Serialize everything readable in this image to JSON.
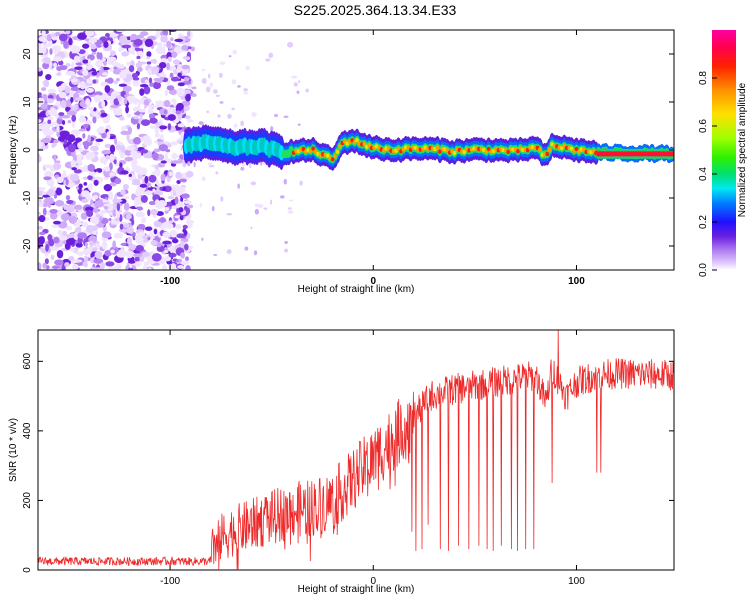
{
  "title": "S225.2025.364.13.34.E33",
  "colors": {
    "snr_line": "#ee2a2a",
    "spectrogram_noise": "#7a28d8",
    "colorbar": [
      "#ffffff",
      "#e8d8ff",
      "#b58cf0",
      "#6f2be0",
      "#2a18ff",
      "#00a0ff",
      "#00e0ff",
      "#00e060",
      "#80ff00",
      "#f0f000",
      "#ff8000",
      "#ff0000",
      "#ff0080"
    ]
  },
  "chart_data": [
    {
      "type": "heatmap",
      "xlabel": "Height of straight line (km)",
      "ylabel": "Frequency (Hz)",
      "xlim": [
        -165,
        148
      ],
      "ylim": [
        -25,
        25
      ],
      "x_ticks": [
        {
          "value": -100,
          "label": "-100"
        },
        {
          "value": 0,
          "label": "0"
        },
        {
          "value": 100,
          "label": "100"
        }
      ],
      "y_ticks": [
        {
          "value": 20,
          "label": "20"
        },
        {
          "value": 10,
          "label": "10"
        },
        {
          "value": 0,
          "label": "0"
        },
        {
          "value": -10,
          "label": "-10"
        },
        {
          "value": -20,
          "label": "-20"
        }
      ],
      "colorbar": {
        "label": "Normalized spectral amplitude",
        "range": [
          0,
          1
        ],
        "ticks": [
          {
            "value": 0.0,
            "label": "0.0"
          },
          {
            "value": 0.2,
            "label": "0.2"
          },
          {
            "value": 0.4,
            "label": "0.4"
          },
          {
            "value": 0.6,
            "label": "0.6"
          },
          {
            "value": 0.8,
            "label": "0.8"
          }
        ]
      },
      "noise_region": {
        "x": [
          -165,
          -90
        ],
        "y": [
          -25,
          25
        ]
      },
      "signal_track": {
        "x": [
          -92,
          -80,
          -70,
          -55,
          -45,
          -30,
          -20,
          -15,
          -10,
          0,
          10,
          20,
          30,
          40,
          50,
          60,
          70,
          80,
          85,
          88,
          100,
          110,
          148
        ],
        "y": [
          1.0,
          1.5,
          0.5,
          0.8,
          -0.5,
          0.0,
          -2.0,
          1.5,
          2.0,
          0.5,
          0.0,
          0.3,
          0.2,
          -0.3,
          0.1,
          0.0,
          -0.2,
          0.5,
          -1.5,
          1.0,
          0.0,
          -0.5,
          -0.8
        ],
        "strong_from_x": 110
      }
    },
    {
      "type": "line",
      "xlabel": "Height of straight line (km)",
      "ylabel": "SNR (10 * v/v)",
      "xlim": [
        -165,
        148
      ],
      "ylim": [
        0,
        690
      ],
      "x_ticks": [
        {
          "value": -100,
          "label": "-100"
        },
        {
          "value": 0,
          "label": "0"
        },
        {
          "value": 100,
          "label": "100"
        }
      ],
      "y_ticks": [
        {
          "value": 0,
          "label": "0"
        },
        {
          "value": 200,
          "label": "200"
        },
        {
          "value": 400,
          "label": "400"
        },
        {
          "value": 600,
          "label": "600"
        }
      ],
      "trend": {
        "x": [
          -165,
          -80,
          -78,
          -70,
          -60,
          -50,
          -40,
          -30,
          -20,
          -10,
          0,
          10,
          20,
          28,
          40,
          60,
          80,
          85,
          88,
          95,
          100,
          110,
          120,
          148
        ],
        "y": [
          25,
          25,
          80,
          110,
          130,
          150,
          170,
          180,
          200,
          260,
          320,
          380,
          440,
          500,
          520,
          540,
          560,
          480,
          580,
          500,
          540,
          560,
          565,
          560
        ]
      },
      "dips": [
        {
          "x": 19,
          "y": 110
        },
        {
          "x": 21,
          "y": 55
        },
        {
          "x": 24,
          "y": 60
        },
        {
          "x": 27,
          "y": 130
        },
        {
          "x": 33,
          "y": 60
        },
        {
          "x": 37,
          "y": 55
        },
        {
          "x": 42,
          "y": 70
        },
        {
          "x": 47,
          "y": 60
        },
        {
          "x": 52,
          "y": 70
        },
        {
          "x": 56,
          "y": 60
        },
        {
          "x": 59,
          "y": 55
        },
        {
          "x": 63,
          "y": 70
        },
        {
          "x": 68,
          "y": 60
        },
        {
          "x": 71,
          "y": 55
        },
        {
          "x": 75,
          "y": 60
        },
        {
          "x": 79,
          "y": 60
        },
        {
          "x": 88,
          "y": 250
        },
        {
          "x": 91,
          "y": 300
        },
        {
          "x": 110,
          "y": 280
        },
        {
          "x": 112,
          "y": 280
        }
      ],
      "peak": {
        "x": 91,
        "y": 690
      }
    }
  ]
}
